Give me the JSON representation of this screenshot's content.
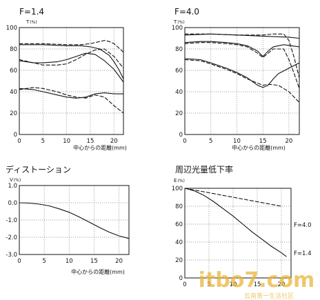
{
  "chart_data": [
    {
      "type": "line",
      "title": "F=1.4",
      "ylabel": "T",
      "ylabel_unit": "(%)",
      "xlabel": "中心からの距離(mm)",
      "xlim": [
        0,
        22
      ],
      "ylim": [
        0,
        100
      ],
      "xticks": [
        "0",
        "5",
        "10",
        "15",
        "20"
      ],
      "yticks": [
        "0",
        "20",
        "40",
        "60",
        "80",
        "100"
      ],
      "grid": true,
      "series": [
        {
          "style": "solid",
          "x": [
            0,
            5,
            10,
            13,
            15,
            17,
            19,
            20,
            21,
            22
          ],
          "values": [
            84,
            84,
            83,
            83,
            82,
            80,
            74,
            68,
            61,
            52
          ]
        },
        {
          "style": "dashed",
          "x": [
            0,
            5,
            10,
            13,
            15,
            17,
            18,
            19,
            20,
            21,
            22
          ],
          "values": [
            85,
            85,
            84,
            84,
            85,
            87,
            88,
            87,
            85,
            81,
            77
          ]
        },
        {
          "style": "solid",
          "x": [
            0,
            3,
            5,
            8,
            10,
            12,
            14,
            16,
            18,
            20,
            22
          ],
          "values": [
            69,
            67,
            67,
            68,
            70,
            73,
            76,
            75,
            69,
            61,
            49
          ]
        },
        {
          "style": "dashed",
          "x": [
            0,
            3,
            5,
            8,
            10,
            12,
            14,
            16,
            18,
            20,
            22
          ],
          "values": [
            70,
            67,
            65,
            65,
            66,
            70,
            75,
            79,
            80,
            73,
            62
          ]
        },
        {
          "style": "solid",
          "x": [
            0,
            3,
            5,
            8,
            10,
            12,
            14,
            16,
            18,
            20,
            22
          ],
          "values": [
            43,
            42,
            40,
            37,
            35,
            34,
            35,
            38,
            39,
            38,
            38
          ]
        },
        {
          "style": "dashed",
          "x": [
            0,
            3,
            5,
            8,
            10,
            12,
            14,
            16,
            17,
            18,
            20,
            22
          ],
          "values": [
            42,
            44,
            43,
            40,
            37,
            35,
            34,
            37,
            36,
            35,
            27,
            20
          ]
        }
      ]
    },
    {
      "type": "line",
      "title": "F=4.0",
      "ylabel": "T",
      "ylabel_unit": "(%)",
      "xlabel": "中心からの距離(mm)",
      "xlim": [
        0,
        22
      ],
      "ylim": [
        0,
        100
      ],
      "xticks": [
        "0",
        "5",
        "10",
        "15",
        "20"
      ],
      "yticks": [
        "0",
        "20",
        "40",
        "60",
        "80",
        "100"
      ],
      "grid": true,
      "series": [
        {
          "style": "solid",
          "x": [
            0,
            5,
            10,
            15,
            20,
            22
          ],
          "values": [
            93,
            94,
            93,
            92,
            91,
            90
          ]
        },
        {
          "style": "dashed",
          "x": [
            0,
            5,
            10,
            13,
            15,
            17,
            19,
            20,
            21,
            22
          ],
          "values": [
            94,
            94,
            93,
            93,
            93,
            94,
            94,
            88,
            72,
            53
          ]
        },
        {
          "style": "solid",
          "x": [
            0,
            3,
            5,
            8,
            10,
            12,
            14,
            15,
            16,
            17,
            19,
            22
          ],
          "values": [
            86,
            87,
            87,
            86,
            85,
            83,
            78,
            73,
            78,
            82,
            84,
            82
          ]
        },
        {
          "style": "dashed",
          "x": [
            0,
            3,
            5,
            8,
            10,
            12,
            14,
            15,
            16,
            17,
            19,
            20,
            21,
            22
          ],
          "values": [
            85,
            86,
            86,
            85,
            84,
            82,
            76,
            72,
            76,
            80,
            80,
            70,
            57,
            43
          ]
        },
        {
          "style": "solid",
          "x": [
            0,
            3,
            5,
            8,
            10,
            12,
            14,
            15,
            16,
            17,
            18,
            20,
            22
          ],
          "values": [
            71,
            70,
            67,
            62,
            58,
            53,
            46,
            44,
            46,
            52,
            57,
            62,
            67
          ]
        },
        {
          "style": "dashed",
          "x": [
            0,
            3,
            5,
            8,
            10,
            12,
            14,
            15,
            16,
            18,
            20,
            22
          ],
          "values": [
            70,
            69,
            66,
            61,
            57,
            52,
            48,
            46,
            47,
            46,
            40,
            30
          ]
        }
      ]
    },
    {
      "type": "line",
      "title": "ディストーション",
      "ylabel": "V",
      "ylabel_unit": "(%)",
      "xlabel": "中心からの距離(mm)",
      "xlim": [
        0,
        22
      ],
      "ylim": [
        -3.0,
        1.0
      ],
      "xticks": [
        "0",
        "5",
        "10",
        "15",
        "20"
      ],
      "yticks": [
        "-3.0",
        "-2.0",
        "-1.0",
        "0.0",
        "1.0"
      ],
      "grid": true,
      "series": [
        {
          "style": "solid",
          "x": [
            0,
            2,
            4,
            6,
            8,
            10,
            12,
            14,
            16,
            18,
            20,
            22
          ],
          "values": [
            0,
            -0.02,
            -0.08,
            -0.18,
            -0.35,
            -0.55,
            -0.82,
            -1.12,
            -1.42,
            -1.7,
            -1.92,
            -2.07
          ]
        }
      ]
    },
    {
      "type": "line",
      "title": "周辺光量低下率",
      "ylabel": "E",
      "ylabel_unit": "(%)",
      "xlabel": "",
      "xlim": [
        0,
        22
      ],
      "ylim": [
        0,
        100
      ],
      "xticks": [
        "0",
        "5",
        "10",
        "15",
        "20"
      ],
      "yticks": [
        "0",
        "20",
        "40",
        "60",
        "80",
        "100"
      ],
      "grid": true,
      "series": [
        {
          "name": "F=4.0",
          "style": "dashed",
          "x": [
            0,
            4,
            8,
            12,
            16,
            20
          ],
          "values": [
            100,
            96,
            92,
            88,
            84,
            80
          ]
        },
        {
          "name": "F=1.4",
          "style": "solid",
          "x": [
            0,
            2,
            4,
            6,
            8,
            10,
            12,
            14,
            16,
            18,
            20,
            21
          ],
          "values": [
            100,
            97,
            92,
            85,
            77,
            69,
            60,
            51,
            43,
            35,
            28,
            24
          ]
        }
      ]
    }
  ],
  "watermark": {
    "text": "itbo7.com",
    "subtitle": "云南第一生活社区",
    "color": "#e8b53a"
  }
}
